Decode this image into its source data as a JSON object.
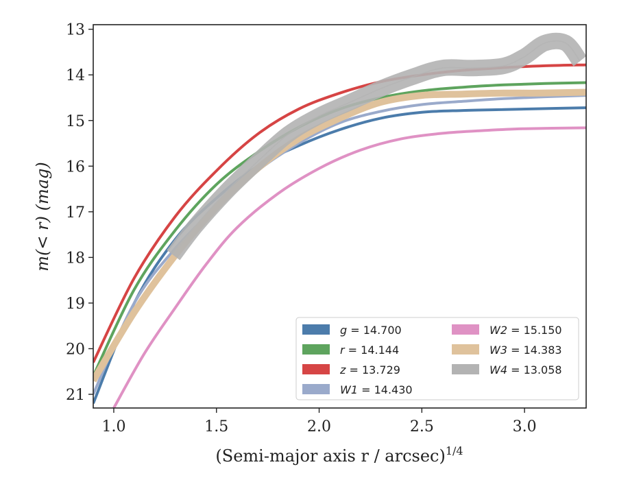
{
  "chart_data": {
    "type": "line",
    "title": "",
    "xlabel": "(Semi-major axis r / arcsec)",
    "xlabel_exponent": "1/4",
    "ylabel": "m(< r) (mag)",
    "xlim": [
      0.9,
      3.3
    ],
    "ylim": [
      21.3,
      12.9
    ],
    "y_inverted": true,
    "grid": false,
    "x_ticks": [
      "1.0",
      "1.5",
      "2.0",
      "2.5",
      "3.0"
    ],
    "y_ticks": [
      "13",
      "14",
      "15",
      "16",
      "17",
      "18",
      "19",
      "20",
      "21"
    ],
    "legend": {
      "location": "lower-right",
      "columns": 2
    },
    "series": [
      {
        "name": "g = 14.700",
        "label_var": "g",
        "label_value": "= 14.700",
        "color": "#4c7cab",
        "band": "narrow",
        "x": [
          0.9,
          1.1,
          1.3,
          1.5,
          1.7,
          1.9,
          2.1,
          2.3,
          2.5,
          2.7,
          2.9,
          3.1,
          3.3
        ],
        "y": [
          21.2,
          19.0,
          17.6,
          16.7,
          16.0,
          15.55,
          15.2,
          14.95,
          14.82,
          14.78,
          14.76,
          14.74,
          14.72
        ]
      },
      {
        "name": "r = 14.144",
        "label_var": "r",
        "label_value": "= 14.144",
        "color": "#5ea45e",
        "band": "narrow",
        "x": [
          0.9,
          1.1,
          1.3,
          1.5,
          1.7,
          1.9,
          2.1,
          2.3,
          2.5,
          2.7,
          2.9,
          3.1,
          3.3
        ],
        "y": [
          20.6,
          18.7,
          17.4,
          16.4,
          15.7,
          15.15,
          14.75,
          14.5,
          14.35,
          14.27,
          14.22,
          14.19,
          14.17
        ]
      },
      {
        "name": "z = 13.729",
        "label_var": "z",
        "label_value": "= 13.729",
        "color": "#d64545",
        "band": "narrow",
        "x": [
          0.9,
          1.1,
          1.3,
          1.5,
          1.7,
          1.9,
          2.1,
          2.3,
          2.5,
          2.7,
          2.9,
          3.1,
          3.3
        ],
        "y": [
          20.3,
          18.45,
          17.1,
          16.1,
          15.3,
          14.75,
          14.4,
          14.15,
          14.0,
          13.9,
          13.84,
          13.8,
          13.78
        ]
      },
      {
        "name": "W1 = 14.430",
        "label_var": "W1",
        "label_value": "= 14.430",
        "color": "#9aaacb",
        "band": "narrow",
        "x": [
          0.9,
          1.1,
          1.3,
          1.5,
          1.7,
          1.9,
          2.1,
          2.3,
          2.5,
          2.7,
          2.9,
          3.1,
          3.3
        ],
        "y": [
          21.0,
          19.0,
          17.8,
          16.9,
          16.1,
          15.5,
          15.05,
          14.8,
          14.65,
          14.58,
          14.52,
          14.48,
          14.45
        ]
      },
      {
        "name": "W2 = 15.150",
        "label_var": "W2",
        "label_value": "= 15.150",
        "color": "#df92c4",
        "band": "narrow",
        "x": [
          1.0,
          1.15,
          1.3,
          1.45,
          1.6,
          1.8,
          2.0,
          2.2,
          2.4,
          2.6,
          2.8,
          3.0,
          3.3
        ],
        "y": [
          21.3,
          20.1,
          19.1,
          18.15,
          17.35,
          16.6,
          16.05,
          15.65,
          15.4,
          15.28,
          15.22,
          15.18,
          15.16
        ]
      },
      {
        "name": "W3 = 14.383",
        "label_var": "W3",
        "label_value": "= 14.383",
        "color": "#dfc29c",
        "band": "wide",
        "x": [
          0.9,
          1.1,
          1.3,
          1.5,
          1.7,
          1.9,
          2.1,
          2.3,
          2.5,
          2.7,
          2.9,
          3.07,
          3.3
        ],
        "y": [
          20.7,
          19.2,
          17.95,
          16.9,
          16.05,
          15.4,
          14.95,
          14.6,
          14.45,
          14.42,
          14.4,
          14.4,
          14.38
        ]
      },
      {
        "name": "W4 = 13.058",
        "label_var": "W4",
        "label_value": "= 13.058",
        "color": "#b3b3b3",
        "band": "band",
        "x": [
          1.29,
          1.4,
          1.55,
          1.7,
          1.85,
          2.0,
          2.15,
          2.3,
          2.45,
          2.6,
          2.75,
          2.9,
          3.0,
          3.1,
          3.2,
          3.27
        ],
        "y": [
          17.95,
          17.3,
          16.55,
          15.9,
          15.3,
          14.9,
          14.6,
          14.3,
          14.05,
          13.85,
          13.85,
          13.8,
          13.6,
          13.3,
          13.3,
          13.7
        ]
      }
    ]
  }
}
